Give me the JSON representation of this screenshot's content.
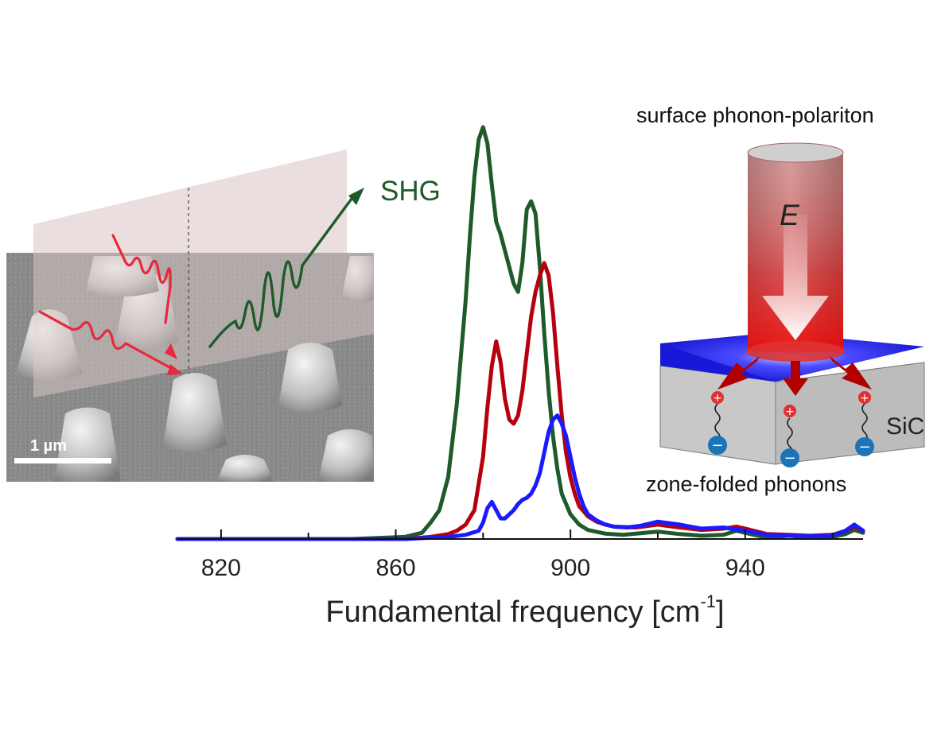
{
  "chart_data": {
    "type": "line",
    "title": "",
    "xlabel": "Fundamental frequency [cm",
    "xlabel_sup": "-1",
    "xlabel_close": "]",
    "ylabel": "",
    "xlim": [
      810,
      967
    ],
    "ylim": [
      0,
      1
    ],
    "x_ticks": [
      820,
      860,
      900,
      940
    ],
    "x_minor_ticks": [
      840,
      880,
      920,
      960
    ],
    "grid": false,
    "legend": "none",
    "series": [
      {
        "color": "#1e5a2a",
        "x": [
          810,
          850,
          862,
          866,
          868,
          870,
          872,
          874,
          876,
          877,
          878,
          879,
          880,
          881,
          882,
          883,
          884,
          885,
          886,
          887,
          888,
          889,
          890,
          891,
          892,
          893,
          894,
          895,
          896,
          897,
          898,
          900,
          902,
          904,
          908,
          912,
          920,
          925,
          930,
          935,
          938,
          942,
          945,
          950,
          955,
          960,
          963,
          965,
          967
        ],
        "y": [
          0.0,
          0.0,
          0.005,
          0.015,
          0.04,
          0.07,
          0.15,
          0.33,
          0.58,
          0.74,
          0.88,
          0.97,
          1.0,
          0.96,
          0.86,
          0.77,
          0.74,
          0.7,
          0.66,
          0.62,
          0.6,
          0.67,
          0.8,
          0.82,
          0.79,
          0.66,
          0.5,
          0.36,
          0.25,
          0.17,
          0.11,
          0.06,
          0.035,
          0.022,
          0.013,
          0.01,
          0.018,
          0.012,
          0.008,
          0.01,
          0.02,
          0.01,
          0.004,
          0.008,
          0.004,
          0.005,
          0.012,
          0.022,
          0.015
        ]
      },
      {
        "color": "#b7000f",
        "x": [
          810,
          862,
          868,
          872,
          874,
          876,
          878,
          880,
          881,
          882,
          883,
          884,
          885,
          886,
          887,
          888,
          889,
          890,
          891,
          892,
          893,
          894,
          895,
          896,
          897,
          898,
          899,
          900,
          901,
          902,
          904,
          906,
          908,
          910,
          915,
          920,
          925,
          930,
          935,
          938,
          940,
          945,
          950,
          955,
          960,
          963,
          965,
          967
        ],
        "y": [
          0.0,
          0.0,
          0.005,
          0.012,
          0.02,
          0.035,
          0.07,
          0.2,
          0.32,
          0.42,
          0.48,
          0.43,
          0.34,
          0.29,
          0.28,
          0.3,
          0.36,
          0.45,
          0.54,
          0.6,
          0.64,
          0.67,
          0.64,
          0.55,
          0.42,
          0.3,
          0.21,
          0.15,
          0.11,
          0.08,
          0.055,
          0.042,
          0.035,
          0.03,
          0.028,
          0.035,
          0.028,
          0.022,
          0.025,
          0.03,
          0.025,
          0.012,
          0.01,
          0.008,
          0.01,
          0.02,
          0.03,
          0.02
        ]
      },
      {
        "color": "#1a1aff",
        "x": [
          810,
          862,
          872,
          876,
          879,
          880,
          881,
          882,
          883,
          884,
          885,
          886,
          887,
          888,
          889,
          890,
          891,
          892,
          893,
          894,
          895,
          896,
          897,
          898,
          899,
          900,
          901,
          902,
          903,
          904,
          906,
          908,
          910,
          913,
          916,
          920,
          925,
          930,
          935,
          940,
          945,
          950,
          955,
          960,
          963,
          965,
          967
        ],
        "y": [
          0.0,
          0.0,
          0.005,
          0.01,
          0.02,
          0.04,
          0.075,
          0.09,
          0.07,
          0.05,
          0.05,
          0.06,
          0.07,
          0.085,
          0.095,
          0.1,
          0.11,
          0.13,
          0.16,
          0.21,
          0.26,
          0.29,
          0.3,
          0.28,
          0.25,
          0.2,
          0.15,
          0.11,
          0.08,
          0.06,
          0.045,
          0.035,
          0.03,
          0.028,
          0.032,
          0.042,
          0.035,
          0.025,
          0.028,
          0.02,
          0.01,
          0.008,
          0.007,
          0.008,
          0.02,
          0.035,
          0.02
        ]
      }
    ],
    "annotations": {
      "shg": "SHG",
      "scale_bar": "1 µm",
      "top_right": "surface phonon-polariton",
      "field": "E",
      "material": "SiC",
      "bottom_right": "zone-folded phonons"
    }
  }
}
